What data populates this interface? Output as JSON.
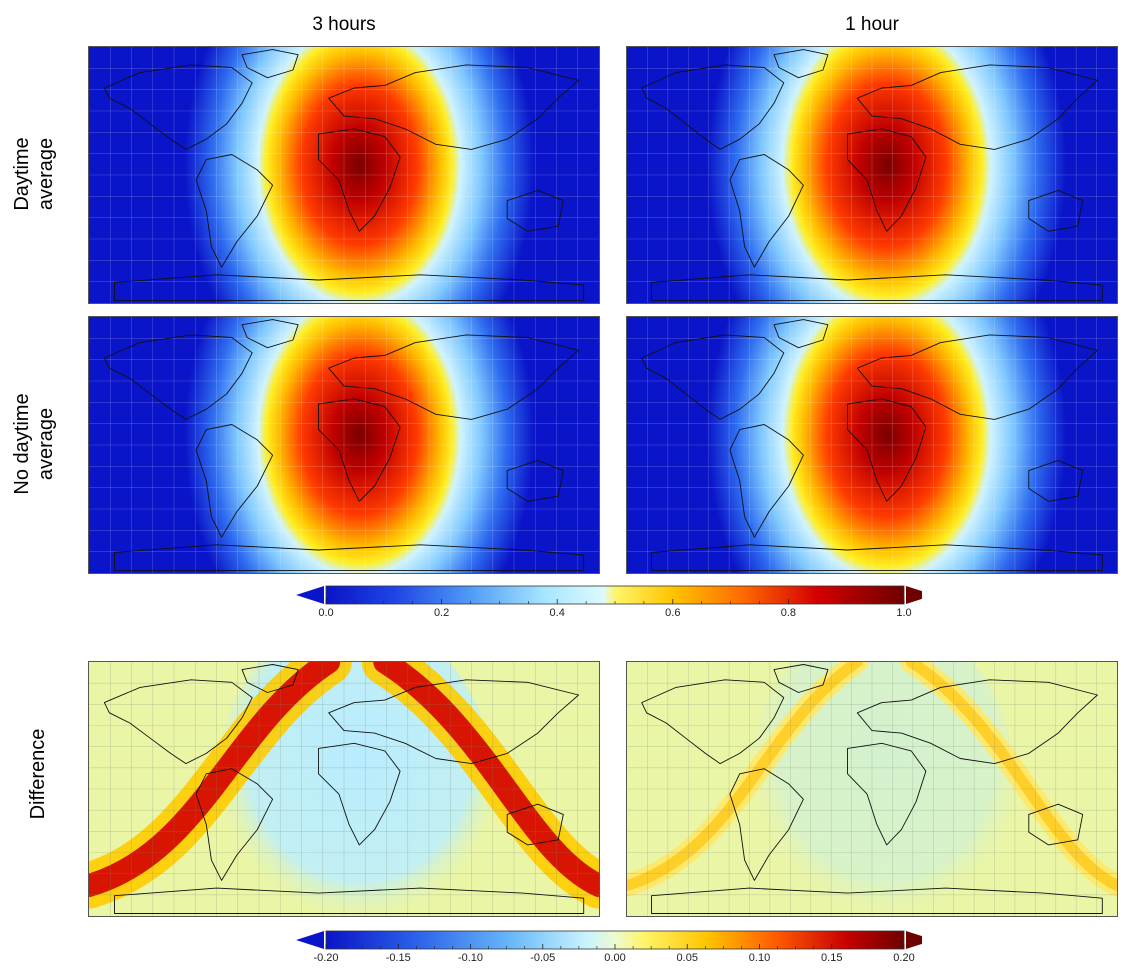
{
  "columns": [
    "3 hours",
    "1 hour"
  ],
  "rows": {
    "daytime": [
      "Daytime",
      "average"
    ],
    "no_daytime": [
      "No daytime",
      "average"
    ],
    "difference": "Difference"
  },
  "colorbar_top": {
    "range": [
      0.0,
      1.0
    ],
    "ticks": [
      "0.0",
      "0.2",
      "0.4",
      "0.6",
      "0.8",
      "1.0"
    ],
    "extend": "both"
  },
  "colorbar_bottom": {
    "range": [
      -0.2,
      0.2
    ],
    "ticks": [
      "-0.20",
      "-0.15",
      "-0.10",
      "-0.05",
      "0.00",
      "0.05",
      "0.10",
      "0.15",
      "0.20"
    ],
    "extend": "both"
  },
  "colors": {
    "ocean_low": "#0a14c8",
    "mid_light": "#aaeeff",
    "yellow": "#ffee00",
    "red": "#dd0000",
    "dark_red": "#7a0000",
    "diff_background": "#eaf5a6"
  }
}
